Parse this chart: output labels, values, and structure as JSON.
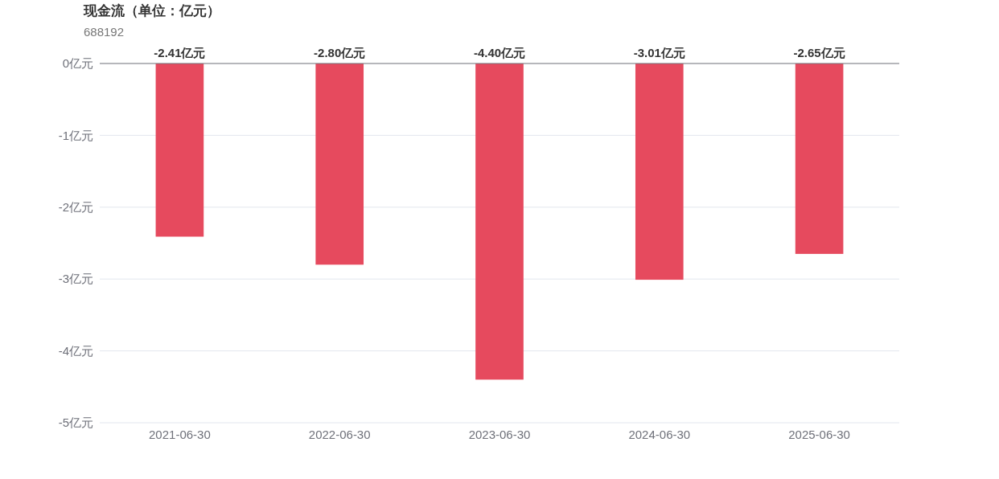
{
  "chart_data": {
    "type": "bar",
    "title": "现金流（单位：亿元）",
    "subtitle": "688192",
    "categories": [
      "2021-06-30",
      "2022-06-30",
      "2023-06-30",
      "2024-06-30",
      "2025-06-30"
    ],
    "values": [
      -2.41,
      -2.8,
      -4.4,
      -3.01,
      -2.65
    ],
    "value_labels": [
      "-2.41亿元",
      "-2.80亿元",
      "-4.40亿元",
      "-3.01亿元",
      "-2.65亿元"
    ],
    "color": "#e64a5e",
    "ylim": [
      -5,
      0
    ],
    "yticks": [
      {
        "value": 0,
        "label": "0亿元"
      },
      {
        "value": -1,
        "label": "-1亿元"
      },
      {
        "value": -2,
        "label": "-2亿元"
      },
      {
        "value": -3,
        "label": "-3亿元"
      },
      {
        "value": -4,
        "label": "-4亿元"
      },
      {
        "value": -5,
        "label": "-5亿元"
      }
    ],
    "grid": "y"
  }
}
